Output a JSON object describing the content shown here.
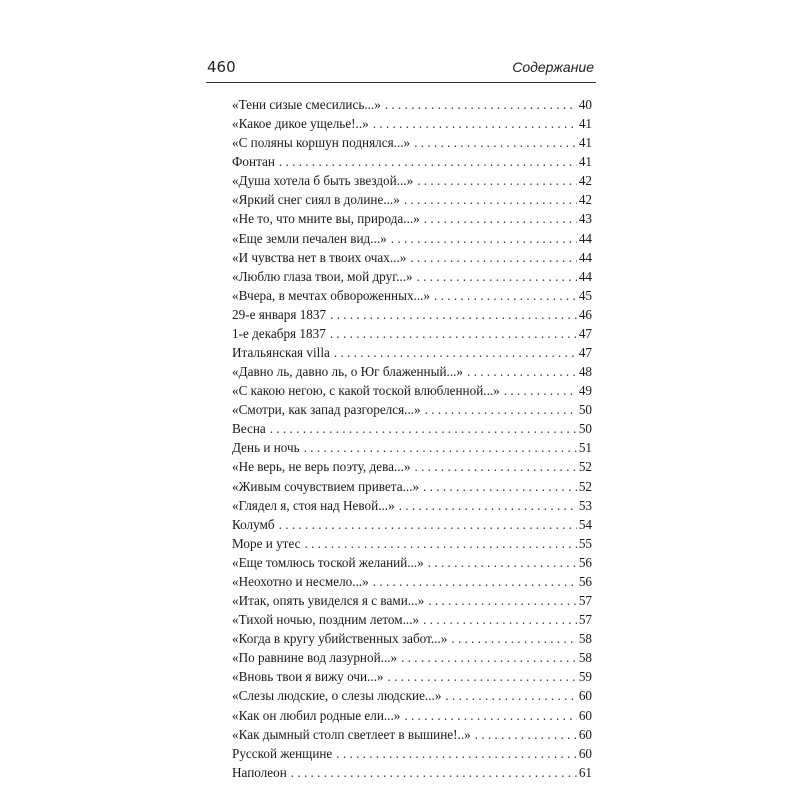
{
  "header": {
    "page_number": "460",
    "title": "Содержание"
  },
  "entries": [
    {
      "title": "«Тени сизые смесились...»",
      "page": "40"
    },
    {
      "title": "«Какое дикое ущелье!..»",
      "page": "41"
    },
    {
      "title": "«С поляны коршун поднялся...»",
      "page": "41"
    },
    {
      "title": "Фонтан",
      "page": "41"
    },
    {
      "title": "«Душа хотела б быть звездой...»",
      "page": "42"
    },
    {
      "title": "«Яркий снег сиял в долине...»",
      "page": "42"
    },
    {
      "title": "«Не то, что мните вы, природа...»",
      "page": "43"
    },
    {
      "title": "«Еще земли печален вид...»",
      "page": "44"
    },
    {
      "title": "«И чувства нет в твоих очах...»",
      "page": "44"
    },
    {
      "title": "«Люблю глаза твои, мой друг...»",
      "page": "44"
    },
    {
      "title": "«Вчера, в мечтах обвороженных...»",
      "page": "45"
    },
    {
      "title": "29-е января 1837",
      "page": "46"
    },
    {
      "title": "1-е декабря 1837",
      "page": "47"
    },
    {
      "title": "Итальянская villa",
      "page": "47"
    },
    {
      "title": "«Давно ль, давно ль, о Юг блаженный...»",
      "page": "48"
    },
    {
      "title": "«С какою негою, с какой тоской влюбленной...»",
      "page": "49"
    },
    {
      "title": "«Смотри, как запад разгорелся...»",
      "page": "50"
    },
    {
      "title": "Весна",
      "page": "50"
    },
    {
      "title": "День и ночь",
      "page": "51"
    },
    {
      "title": "«Не верь, не верь поэту, дева...»",
      "page": "52"
    },
    {
      "title": "«Живым сочувствием привета...»",
      "page": "52"
    },
    {
      "title": "«Глядел я, стоя над Невой...»",
      "page": "53"
    },
    {
      "title": "Колумб",
      "page": "54"
    },
    {
      "title": "Море и утес",
      "page": "55"
    },
    {
      "title": "«Еще томлюсь тоской желаний...»",
      "page": "56"
    },
    {
      "title": "«Неохотно и несмело...»",
      "page": "56"
    },
    {
      "title": "«Итак, опять увиделся я с вами...»",
      "page": "57"
    },
    {
      "title": "«Тихой ночью, поздним летом...»",
      "page": "57"
    },
    {
      "title": "«Когда в кругу убийственных забот...»",
      "page": "58"
    },
    {
      "title": "«По равнине вод лазурной...»",
      "page": "58"
    },
    {
      "title": "«Вновь твои я вижу очи...»",
      "page": "59"
    },
    {
      "title": "«Слезы людские, о слезы людские...»",
      "page": "60"
    },
    {
      "title": "«Как он любил родные ели...»",
      "page": "60"
    },
    {
      "title": "«Как дымный столп светлеет в вышине!..»",
      "page": "60"
    },
    {
      "title": "Русской женщине",
      "page": "60"
    },
    {
      "title": "Наполеон",
      "page": "61"
    }
  ]
}
